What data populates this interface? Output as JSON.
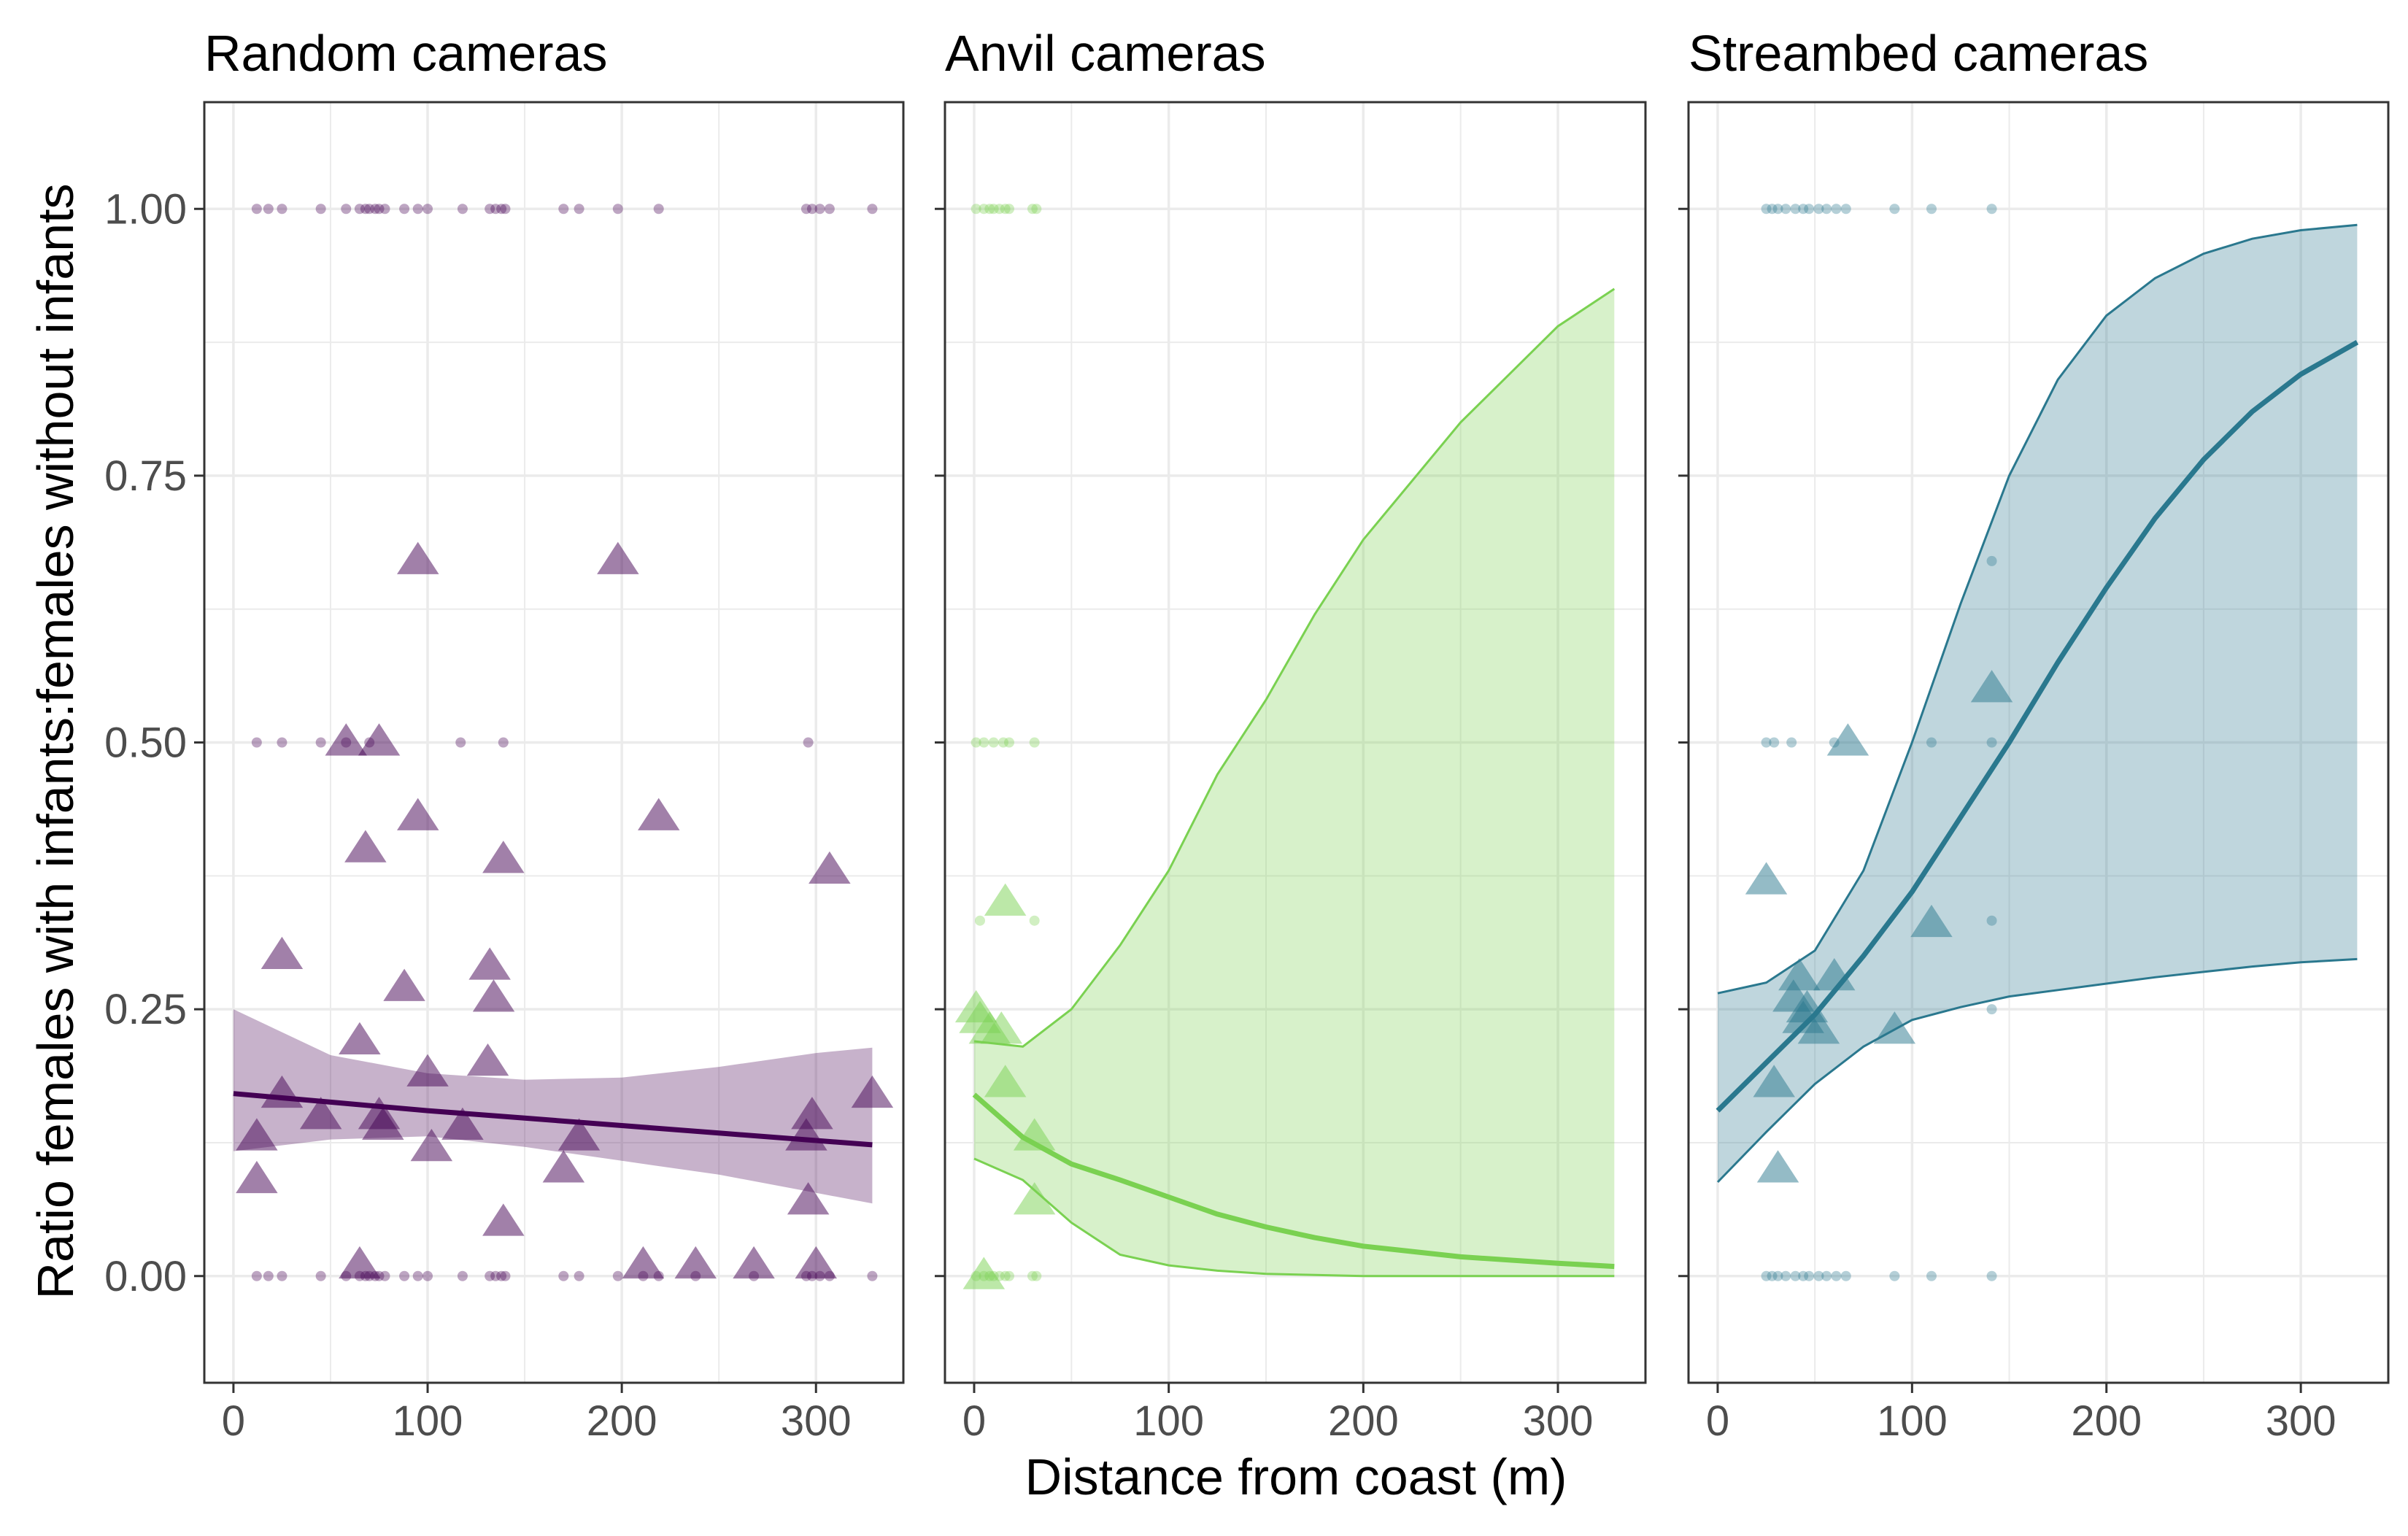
{
  "figure": {
    "xlabel": "Distance from coast (m)",
    "ylabel": "Ratio females with infants:females without infants"
  },
  "chart_data": [
    {
      "type": "scatter",
      "title": "Random cameras",
      "color": "#440154",
      "xlim": [
        -15,
        345
      ],
      "ylim": [
        -0.1,
        1.1
      ],
      "x_ticks": [
        0,
        100,
        200,
        300
      ],
      "y_ticks": [
        0,
        0.25,
        0.5,
        0.75,
        1.0
      ],
      "y_tick_labels": [
        "0.00",
        "0.25",
        "0.50",
        "0.75",
        "1.00"
      ],
      "grid": true,
      "points": {
        "y1": [
          12,
          18,
          25,
          45,
          58,
          65,
          68,
          70,
          73,
          75,
          78,
          88,
          95,
          100,
          118,
          132,
          135,
          138,
          140,
          170,
          178,
          198,
          219,
          295,
          298,
          302,
          307,
          329
        ],
        "y05": [
          12,
          25,
          45,
          58,
          70,
          117,
          139,
          296
        ],
        "y0": [
          12,
          18,
          25,
          45,
          58,
          65,
          68,
          70,
          73,
          75,
          78,
          88,
          95,
          100,
          118,
          132,
          135,
          138,
          140,
          170,
          178,
          198,
          211,
          219,
          238,
          268,
          295,
          298,
          302,
          307,
          329
        ]
      },
      "means": [
        {
          "x": 95,
          "y": 0.67
        },
        {
          "x": 198,
          "y": 0.67
        },
        {
          "x": 58,
          "y": 0.5
        },
        {
          "x": 75,
          "y": 0.5
        },
        {
          "x": 95,
          "y": 0.43
        },
        {
          "x": 219,
          "y": 0.43
        },
        {
          "x": 68,
          "y": 0.4
        },
        {
          "x": 139,
          "y": 0.39
        },
        {
          "x": 307,
          "y": 0.38
        },
        {
          "x": 25,
          "y": 0.3
        },
        {
          "x": 132,
          "y": 0.29
        },
        {
          "x": 88,
          "y": 0.27
        },
        {
          "x": 134,
          "y": 0.26
        },
        {
          "x": 65,
          "y": 0.22
        },
        {
          "x": 131,
          "y": 0.2
        },
        {
          "x": 100,
          "y": 0.19
        },
        {
          "x": 25,
          "y": 0.17
        },
        {
          "x": 329,
          "y": 0.17
        },
        {
          "x": 45,
          "y": 0.15
        },
        {
          "x": 75,
          "y": 0.15
        },
        {
          "x": 298,
          "y": 0.15
        },
        {
          "x": 77,
          "y": 0.14
        },
        {
          "x": 118,
          "y": 0.14
        },
        {
          "x": 12,
          "y": 0.13
        },
        {
          "x": 178,
          "y": 0.13
        },
        {
          "x": 295,
          "y": 0.13
        },
        {
          "x": 102,
          "y": 0.12
        },
        {
          "x": 170,
          "y": 0.1
        },
        {
          "x": 12,
          "y": 0.09
        },
        {
          "x": 296,
          "y": 0.07
        },
        {
          "x": 139,
          "y": 0.05
        },
        {
          "x": 65,
          "y": 0.01
        },
        {
          "x": 211,
          "y": 0.01
        },
        {
          "x": 238,
          "y": 0.01
        },
        {
          "x": 268,
          "y": 0.01
        },
        {
          "x": 300,
          "y": 0.01
        }
      ],
      "fit": {
        "x": [
          0,
          50,
          100,
          150,
          200,
          250,
          300,
          329
        ],
        "y": [
          0.171,
          0.163,
          0.155,
          0.148,
          0.141,
          0.134,
          0.127,
          0.123
        ],
        "lower": [
          0.117,
          0.128,
          0.131,
          0.121,
          0.108,
          0.095,
          0.078,
          0.068
        ],
        "upper": [
          0.25,
          0.207,
          0.19,
          0.184,
          0.186,
          0.196,
          0.209,
          0.214
        ]
      }
    },
    {
      "type": "scatter",
      "title": "Anvil cameras",
      "color": "#7AD151",
      "xlim": [
        -15,
        345
      ],
      "ylim": [
        -0.1,
        1.1
      ],
      "x_ticks": [
        0,
        100,
        200,
        300
      ],
      "y_ticks": [
        0,
        0.25,
        0.5,
        0.75,
        1.0
      ],
      "y_tick_labels": [
        "0.00",
        "0.25",
        "0.50",
        "0.75",
        "1.00"
      ],
      "grid": true,
      "points": {
        "y1": [
          1,
          5,
          8,
          10,
          13,
          16,
          18,
          30,
          32
        ],
        "y05": [
          1,
          5,
          10,
          15,
          18,
          31
        ],
        "y033": [
          3,
          31
        ],
        "y0": [
          1,
          5,
          8,
          10,
          13,
          16,
          18,
          30,
          32
        ]
      },
      "means": [
        {
          "x": 16,
          "y": 0.35
        },
        {
          "x": 1,
          "y": 0.25
        },
        {
          "x": 3,
          "y": 0.24
        },
        {
          "x": 8,
          "y": 0.23
        },
        {
          "x": 14,
          "y": 0.23
        },
        {
          "x": 16,
          "y": 0.18
        },
        {
          "x": 31,
          "y": 0.13
        },
        {
          "x": 31,
          "y": 0.07
        },
        {
          "x": 5,
          "y": 0.0
        }
      ],
      "fit": {
        "x": [
          0,
          25,
          50,
          75,
          100,
          125,
          150,
          175,
          200,
          250,
          300,
          329
        ],
        "y": [
          0.17,
          0.13,
          0.105,
          0.09,
          0.074,
          0.058,
          0.046,
          0.036,
          0.028,
          0.018,
          0.012,
          0.009
        ],
        "lower": [
          0.11,
          0.09,
          0.05,
          0.02,
          0.01,
          0.005,
          0.002,
          0.001,
          0.0,
          0.0,
          0.0,
          0.0
        ],
        "upper": [
          0.22,
          0.215,
          0.25,
          0.31,
          0.38,
          0.47,
          0.54,
          0.62,
          0.69,
          0.8,
          0.89,
          0.925
        ]
      }
    },
    {
      "type": "scatter",
      "title": "Streambed cameras",
      "color": "#2A788E",
      "xlim": [
        -15,
        345
      ],
      "ylim": [
        -0.1,
        1.1
      ],
      "x_ticks": [
        0,
        100,
        200,
        300
      ],
      "y_ticks": [
        0,
        0.25,
        0.5,
        0.75,
        1.0
      ],
      "y_tick_labels": [
        "0.00",
        "0.25",
        "0.50",
        "0.75",
        "1.00"
      ],
      "grid": true,
      "points": {
        "y1": [
          25,
          28,
          31,
          35,
          40,
          44,
          47,
          52,
          56,
          61,
          66,
          91,
          110,
          141
        ],
        "y067": [
          141
        ],
        "y05": [
          25,
          29,
          38,
          60,
          110,
          141
        ],
        "y033": [
          141
        ],
        "y025": [
          141
        ],
        "y0": [
          25,
          28,
          31,
          35,
          40,
          44,
          47,
          52,
          56,
          61,
          66,
          91,
          110,
          141
        ]
      },
      "means": [
        {
          "x": 141,
          "y": 0.55
        },
        {
          "x": 67,
          "y": 0.5
        },
        {
          "x": 25,
          "y": 0.37
        },
        {
          "x": 110,
          "y": 0.33
        },
        {
          "x": 42,
          "y": 0.28
        },
        {
          "x": 60,
          "y": 0.28
        },
        {
          "x": 39,
          "y": 0.26
        },
        {
          "x": 46,
          "y": 0.25
        },
        {
          "x": 44,
          "y": 0.24
        },
        {
          "x": 52,
          "y": 0.23
        },
        {
          "x": 91,
          "y": 0.23
        },
        {
          "x": 29,
          "y": 0.18
        },
        {
          "x": 31,
          "y": 0.1
        }
      ],
      "fit": {
        "x": [
          0,
          25,
          50,
          75,
          100,
          125,
          150,
          175,
          200,
          225,
          250,
          275,
          300,
          329
        ],
        "y": [
          0.155,
          0.2,
          0.245,
          0.3,
          0.36,
          0.43,
          0.5,
          0.575,
          0.645,
          0.71,
          0.765,
          0.81,
          0.845,
          0.875
        ],
        "lower": [
          0.088,
          0.135,
          0.18,
          0.215,
          0.24,
          0.252,
          0.262,
          0.268,
          0.274,
          0.28,
          0.285,
          0.29,
          0.294,
          0.297
        ],
        "upper": [
          0.265,
          0.275,
          0.305,
          0.38,
          0.5,
          0.63,
          0.75,
          0.84,
          0.9,
          0.935,
          0.958,
          0.972,
          0.98,
          0.985
        ]
      }
    }
  ]
}
